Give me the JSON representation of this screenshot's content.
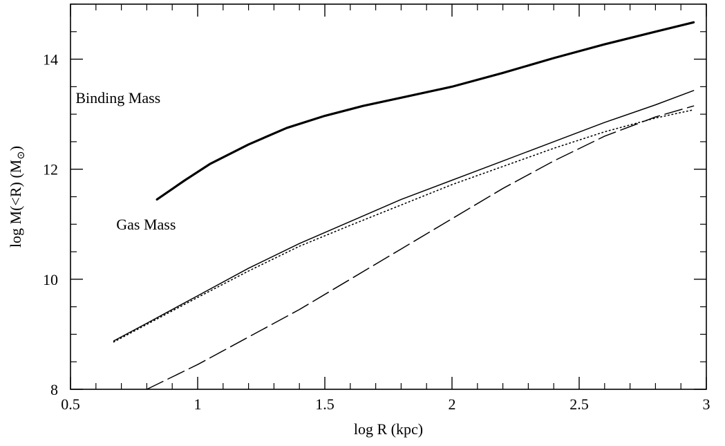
{
  "chart_data": {
    "type": "line",
    "xlabel": "log R (kpc)",
    "ylabel_main": "log M(<R) (M",
    "ylabel_sub": "⊙",
    "ylabel_close": ")",
    "xlim": [
      0.5,
      3.0
    ],
    "ylim": [
      8,
      15.0
    ],
    "xticks": [
      {
        "v": 0.5,
        "label": "0.5"
      },
      {
        "v": 1.0,
        "label": "1"
      },
      {
        "v": 1.5,
        "label": "1.5"
      },
      {
        "v": 2.0,
        "label": "2"
      },
      {
        "v": 2.5,
        "label": "2.5"
      },
      {
        "v": 3.0,
        "label": "3"
      }
    ],
    "yticks": [
      {
        "v": 8,
        "label": "8"
      },
      {
        "v": 10,
        "label": "10"
      },
      {
        "v": 12,
        "label": "12"
      },
      {
        "v": 14,
        "label": "14"
      }
    ],
    "x_minor_step": 0.1,
    "y_minor_step": 0.5,
    "grid": false,
    "annotations": [
      {
        "text": "Binding Mass",
        "x": 0.52,
        "y": 13.2
      },
      {
        "text": "Gas Mass",
        "x": 0.68,
        "y": 10.9
      }
    ],
    "series": [
      {
        "style": "thick",
        "x": [
          0.84,
          0.95,
          1.05,
          1.2,
          1.35,
          1.5,
          1.65,
          1.8,
          2.0,
          2.2,
          2.4,
          2.6,
          2.8,
          2.95
        ],
        "y": [
          11.45,
          11.8,
          12.1,
          12.45,
          12.75,
          12.97,
          13.15,
          13.3,
          13.5,
          13.75,
          14.02,
          14.27,
          14.5,
          14.67
        ]
      },
      {
        "style": "solid",
        "x": [
          0.67,
          0.8,
          1.0,
          1.2,
          1.4,
          1.6,
          1.8,
          2.0,
          2.2,
          2.4,
          2.6,
          2.8,
          2.95
        ],
        "y": [
          8.88,
          9.2,
          9.7,
          10.2,
          10.65,
          11.05,
          11.45,
          11.8,
          12.15,
          12.5,
          12.85,
          13.17,
          13.43
        ]
      },
      {
        "style": "dotted",
        "x": [
          0.67,
          0.8,
          1.0,
          1.2,
          1.4,
          1.6,
          1.8,
          2.0,
          2.2,
          2.4,
          2.6,
          2.8,
          2.95
        ],
        "y": [
          8.86,
          9.18,
          9.67,
          10.15,
          10.6,
          10.98,
          11.35,
          11.72,
          12.05,
          12.38,
          12.68,
          12.93,
          13.08
        ]
      },
      {
        "style": "dashed",
        "x": [
          0.8,
          1.0,
          1.2,
          1.4,
          1.6,
          1.8,
          2.0,
          2.2,
          2.4,
          2.6,
          2.8,
          2.95
        ],
        "y": [
          8.0,
          8.45,
          8.95,
          9.45,
          10.0,
          10.55,
          11.1,
          11.65,
          12.15,
          12.6,
          12.95,
          13.15
        ]
      }
    ]
  }
}
